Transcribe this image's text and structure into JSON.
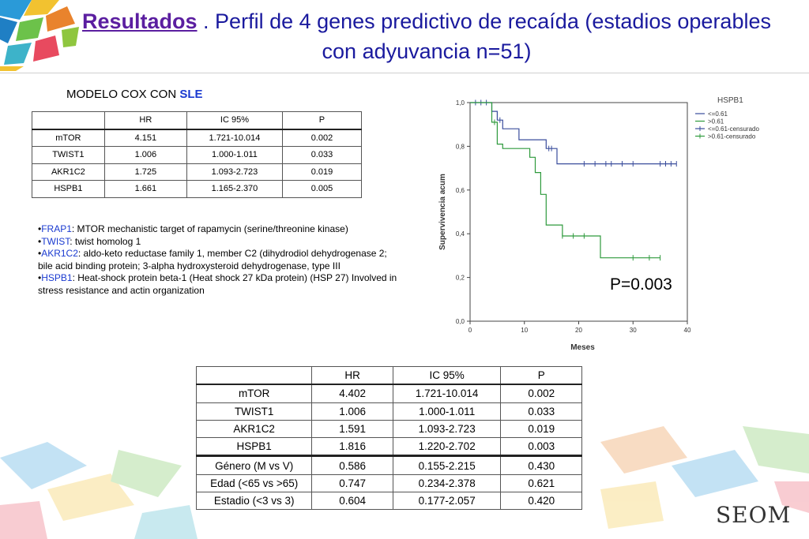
{
  "title": {
    "keyword": "Resultados",
    "text": " . Perfil de 4 genes predictivo de recaída (estadios operables con adyuvancia n=51)"
  },
  "model": {
    "prefix": "MODELO COX CON ",
    "highlight": "SLE"
  },
  "table1": {
    "headers": [
      "",
      "HR",
      "IC 95%",
      "P"
    ],
    "rows": [
      [
        "mTOR",
        "4.151",
        "1.721-10.014",
        "0.002"
      ],
      [
        "TWIST1",
        "1.006",
        "1.000-1.011",
        "0.033"
      ],
      [
        "AKR1C2",
        "1.725",
        "1.093-2.723",
        "0.019"
      ],
      [
        "HSPB1",
        "1.661",
        "1.165-2.370",
        "0.005"
      ]
    ]
  },
  "notes": [
    {
      "gene": "FRAP1",
      "text": ": MTOR mechanistic target of rapamycin (serine/threonine kinase)"
    },
    {
      "gene": "TWIST",
      "text": ": twist homolog 1"
    },
    {
      "gene": "AKR1C2",
      "text": ": aldo-keto reductase family 1, member C2 (dihydrodiol dehydrogenase 2; bile acid binding protein; 3-alpha hydroxysteroid dehydrogenase, type III"
    },
    {
      "gene": "HSPB1",
      "text": ": Heat-shock protein beta-1 (Heat shock 27 kDa protein) (HSP 27) Involved in stress resistance and actin organization"
    }
  ],
  "pvalue": "P=0.003",
  "table2": {
    "headers": [
      "",
      "HR",
      "IC 95%",
      "P"
    ],
    "rows": [
      [
        "mTOR",
        "4.402",
        "1.721-10.014",
        "0.002"
      ],
      [
        "TWIST1",
        "1.006",
        "1.000-1.011",
        "0.033"
      ],
      [
        "AKR1C2",
        "1.591",
        "1.093-2.723",
        "0.019"
      ],
      [
        "HSPB1",
        "1.816",
        "1.220-2.702",
        "0.003"
      ],
      [
        "Género (M vs V)",
        "0.586",
        "0.155-2.215",
        "0.430"
      ],
      [
        "Edad (<65 vs >65)",
        "0.747",
        "0.234-2.378",
        "0.621"
      ],
      [
        "Estadio (<3 vs 3)",
        "0.604",
        "0.177-2.057",
        "0.420"
      ]
    ]
  },
  "logo": "SEOM",
  "colors": {
    "title": "#1a1a9e",
    "low": "#3a4d9c",
    "high": "#2e9a3c"
  },
  "chart_data": {
    "type": "line",
    "title": "",
    "xlabel": "Meses",
    "ylabel": "Supervivencia acum",
    "xlim": [
      0,
      40
    ],
    "ylim": [
      0,
      1
    ],
    "xticks": [
      "0",
      "10",
      "20",
      "30",
      "40"
    ],
    "yticks": [
      "0,0",
      "0,2",
      "0,4",
      "0,6",
      "0,8",
      "1,0"
    ],
    "legend_title": "HSPB1",
    "legend": [
      "<=0.61",
      ">0.61",
      "<=0.61-censurado",
      ">0.61-censurado"
    ],
    "series": [
      {
        "name": "<=0.61",
        "steps": [
          [
            0,
            1.0
          ],
          [
            4,
            1.0
          ],
          [
            4,
            0.96
          ],
          [
            5,
            0.96
          ],
          [
            5,
            0.92
          ],
          [
            6,
            0.92
          ],
          [
            6,
            0.88
          ],
          [
            9,
            0.88
          ],
          [
            9,
            0.83
          ],
          [
            14,
            0.83
          ],
          [
            14,
            0.79
          ],
          [
            16,
            0.79
          ],
          [
            16,
            0.72
          ],
          [
            38,
            0.72
          ]
        ],
        "censored": [
          [
            1,
            1.0
          ],
          [
            2,
            1.0
          ],
          [
            3,
            1.0
          ],
          [
            5.5,
            0.92
          ],
          [
            14.5,
            0.79
          ],
          [
            15,
            0.79
          ],
          [
            21,
            0.72
          ],
          [
            23,
            0.72
          ],
          [
            25,
            0.72
          ],
          [
            26,
            0.72
          ],
          [
            28,
            0.72
          ],
          [
            30,
            0.72
          ],
          [
            35,
            0.72
          ],
          [
            36,
            0.72
          ],
          [
            37,
            0.72
          ],
          [
            38,
            0.72
          ]
        ]
      },
      {
        "name": ">0.61",
        "steps": [
          [
            0,
            1.0
          ],
          [
            4,
            1.0
          ],
          [
            4,
            0.91
          ],
          [
            5,
            0.91
          ],
          [
            5,
            0.81
          ],
          [
            6,
            0.81
          ],
          [
            6,
            0.79
          ],
          [
            11,
            0.79
          ],
          [
            11,
            0.75
          ],
          [
            12,
            0.75
          ],
          [
            12,
            0.68
          ],
          [
            13,
            0.68
          ],
          [
            13,
            0.58
          ],
          [
            14,
            0.58
          ],
          [
            14,
            0.44
          ],
          [
            17,
            0.44
          ],
          [
            17,
            0.39
          ],
          [
            24,
            0.39
          ],
          [
            24,
            0.29
          ],
          [
            35,
            0.29
          ]
        ],
        "censored": [
          [
            4.5,
            0.91
          ],
          [
            17,
            0.39
          ],
          [
            19,
            0.39
          ],
          [
            21,
            0.39
          ],
          [
            30,
            0.29
          ],
          [
            33,
            0.29
          ],
          [
            35,
            0.29
          ]
        ]
      }
    ]
  }
}
